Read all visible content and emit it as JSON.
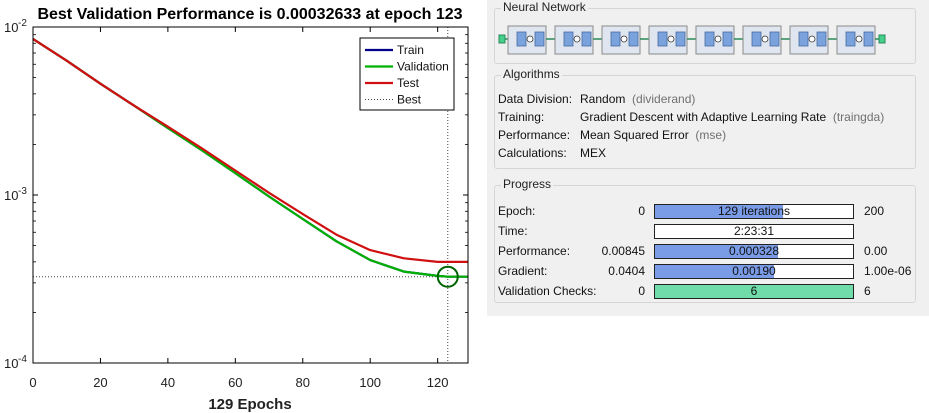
{
  "plot": {
    "title": "Best Validation Performance is 0.00032633 at epoch 123",
    "xlabel": "129 Epochs",
    "y_ticks": [
      {
        "base": "10",
        "exp": "-2"
      },
      {
        "base": "10",
        "exp": "-3"
      },
      {
        "base": "10",
        "exp": "-4"
      }
    ],
    "x_ticks": [
      "0",
      "20",
      "40",
      "60",
      "80",
      "100",
      "120"
    ],
    "legend": [
      "Train",
      "Validation",
      "Test",
      "Best"
    ]
  },
  "chart_data": {
    "type": "line",
    "title": "Best Validation Performance is 0.00032633 at epoch 123",
    "xlabel": "129 Epochs",
    "ylabel": "",
    "xlim": [
      0,
      129
    ],
    "ylim": [
      0.0001,
      0.01
    ],
    "yscale": "log",
    "grid": false,
    "legend_position": "top-right",
    "x": [
      0,
      10,
      20,
      30,
      40,
      50,
      60,
      70,
      80,
      90,
      100,
      110,
      120,
      123,
      129
    ],
    "series": [
      {
        "name": "Train",
        "color": "#00008b",
        "values": [
          0.0085,
          0.0063,
          0.0046,
          0.0034,
          0.0025,
          0.00185,
          0.00135,
          0.00098,
          0.00072,
          0.00053,
          0.00041,
          0.00035,
          0.00033,
          0.00032633,
          0.00032633
        ]
      },
      {
        "name": "Validation",
        "color": "#00b000",
        "values": [
          0.0085,
          0.0063,
          0.0046,
          0.0034,
          0.0025,
          0.00185,
          0.00135,
          0.00098,
          0.00072,
          0.00053,
          0.00041,
          0.00035,
          0.00033,
          0.00032633,
          0.00032633
        ]
      },
      {
        "name": "Test",
        "color": "#d01010",
        "values": [
          0.0085,
          0.0063,
          0.0046,
          0.0034,
          0.00255,
          0.0019,
          0.0014,
          0.00103,
          0.00077,
          0.00058,
          0.00047,
          0.00042,
          0.0004,
          0.0004,
          0.0004
        ]
      }
    ],
    "best": {
      "epoch": 123,
      "value": 0.00032633,
      "label": "Best"
    }
  },
  "panel": {
    "network_title": "Neural Network",
    "network_color": "#7aa3dd",
    "network_layers": 8,
    "algorithms_title": "Algorithms",
    "algorithms": [
      {
        "label": "Data Division:",
        "value": "Random",
        "note": "(dividerand)"
      },
      {
        "label": "Training:",
        "value": "Gradient Descent with Adaptive Learning Rate",
        "note": "(traingda)"
      },
      {
        "label": "Performance:",
        "value": "Mean Squared Error",
        "note": "(mse)"
      },
      {
        "label": "Calculations:",
        "value": "MEX",
        "note": ""
      }
    ],
    "progress_title": "Progress",
    "progress": [
      {
        "label": "Epoch:",
        "start": "0",
        "text": "129 iterations",
        "end": "200",
        "fill": 0.645,
        "fill_color": "#7a9be5"
      },
      {
        "label": "Time:",
        "start": "",
        "text": "2:23:31",
        "end": "",
        "fill": 0,
        "fill_color": "#7a9be5"
      },
      {
        "label": "Performance:",
        "start": "0.00845",
        "text": "0.000328",
        "end": "0.00",
        "fill": 0.62,
        "fill_color": "#7a9be5"
      },
      {
        "label": "Gradient:",
        "start": "0.0404",
        "text": "0.00190",
        "end": "1.00e-06",
        "fill": 0.6,
        "fill_color": "#7a9be5"
      },
      {
        "label": "Validation Checks:",
        "start": "0",
        "text": "6",
        "end": "6",
        "fill": 1.0,
        "fill_color": "#6fdcaa"
      }
    ]
  }
}
